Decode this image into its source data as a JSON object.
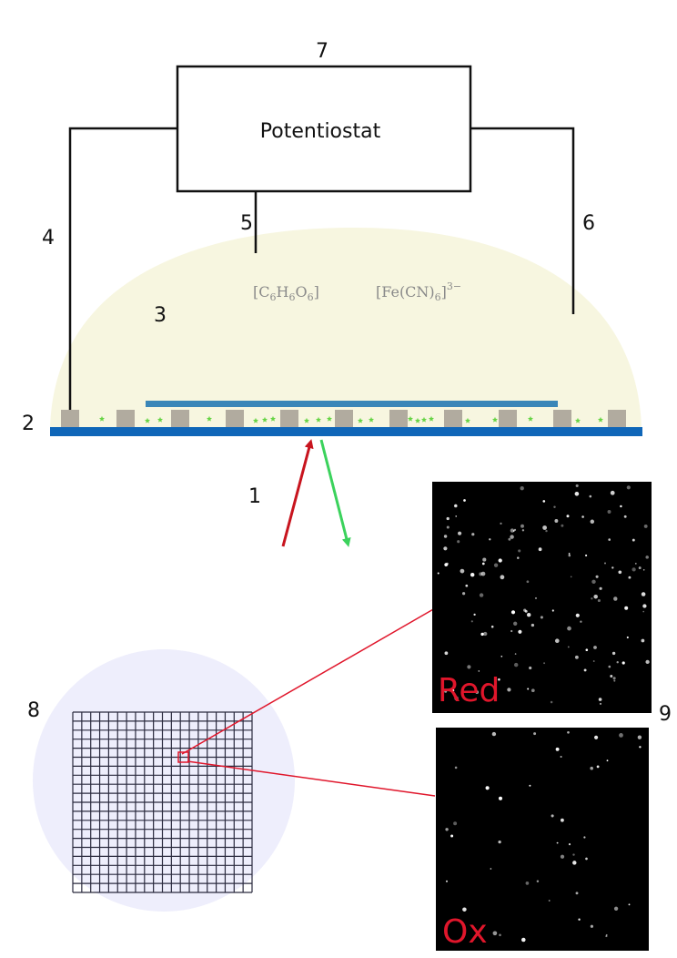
{
  "colors": {
    "droplet": "#f7f6e0",
    "substrate": "#0f66b8",
    "top_electrode": "#3a86b8",
    "pad": "#b1ab9f",
    "particle": "#66d444",
    "arrow_in": "#c8141e",
    "arrow_out": "#3bd25c",
    "wire": "#111111",
    "zoom_line": "#e0162b",
    "grid_disc": "#eeeefc",
    "grid": "#2a2a3e",
    "label_red": "#e0162b"
  },
  "potentiostat": {
    "label": "Potentiostat",
    "number": "7"
  },
  "labels": {
    "n1": "1",
    "n2": "2",
    "n3": "3",
    "n4": "4",
    "n5": "5",
    "n6": "6",
    "n7": "7",
    "n8": "8",
    "n9": "9"
  },
  "chemicals": {
    "species1": {
      "base": "[C",
      "s1": "6",
      "h": "H",
      "s2": "6",
      "o": "O",
      "s3": "6",
      "close": "]"
    },
    "species2": {
      "base": "[Fe(CN)",
      "sub": "6",
      "close": "]",
      "sup": "3−"
    }
  },
  "images": {
    "top_label": "Red",
    "bottom_label": "Ox"
  },
  "grid": {
    "rows": 20,
    "cols": 20
  }
}
